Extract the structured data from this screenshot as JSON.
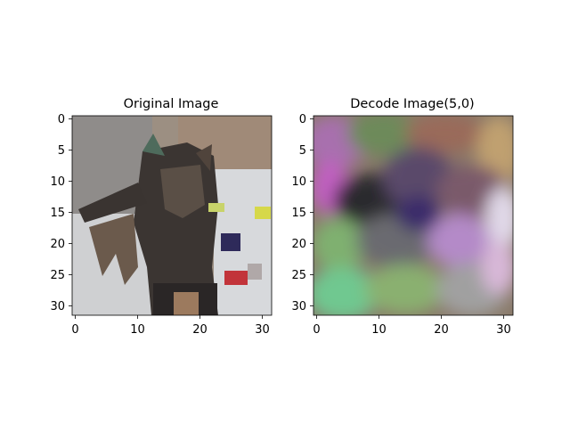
{
  "figure": {
    "panels": [
      {
        "title": "Original Image",
        "y_ticks": [
          "0",
          "5",
          "10",
          "15",
          "20",
          "25",
          "30"
        ],
        "x_ticks": [
          "0",
          "10",
          "20",
          "30"
        ],
        "image_grid": [
          32,
          32
        ]
      },
      {
        "title": "Decode Image(5,0)",
        "y_ticks": [
          "0",
          "5",
          "10",
          "15",
          "20",
          "25",
          "30"
        ],
        "x_ticks": [
          "0",
          "10",
          "20",
          "30"
        ],
        "image_grid": [
          32,
          32
        ]
      }
    ]
  }
}
